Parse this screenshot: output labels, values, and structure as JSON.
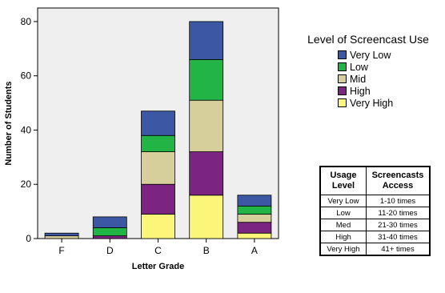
{
  "chart_data": {
    "type": "bar",
    "stacked": true,
    "xlabel": "Letter Grade",
    "ylabel": "Number of Students",
    "ylim": [
      0,
      85
    ],
    "yticks": [
      0,
      20,
      40,
      60,
      80
    ],
    "categories": [
      "F",
      "D",
      "C",
      "B",
      "A"
    ],
    "series": [
      {
        "name": "Very High",
        "color": "#fbf67a",
        "values": [
          0,
          0,
          9,
          16,
          2
        ]
      },
      {
        "name": "High",
        "color": "#7b2580",
        "values": [
          0,
          1,
          11,
          16,
          4
        ]
      },
      {
        "name": "Mid",
        "color": "#d6cf9c",
        "values": [
          1,
          0,
          12,
          19,
          3
        ]
      },
      {
        "name": "Low",
        "color": "#23b446",
        "values": [
          0,
          3,
          6,
          15,
          3
        ]
      },
      {
        "name": "Very Low",
        "color": "#3c58a5",
        "values": [
          1,
          4,
          9,
          14,
          4
        ]
      }
    ],
    "legend": {
      "title": "Level of Screencast Use",
      "placement": "right",
      "order": [
        "Very Low",
        "Low",
        "Mid",
        "High",
        "Very High"
      ]
    },
    "plot_background": "#efefef"
  },
  "usage_table": {
    "headers": [
      "Usage Level",
      "Screencasts Access"
    ],
    "rows": [
      [
        "Very Low",
        "1-10 times"
      ],
      [
        "Low",
        "11-20 times"
      ],
      [
        "Med",
        "21-30 times"
      ],
      [
        "High",
        "31-40 times"
      ],
      [
        "Very High",
        "41+ times"
      ]
    ]
  }
}
